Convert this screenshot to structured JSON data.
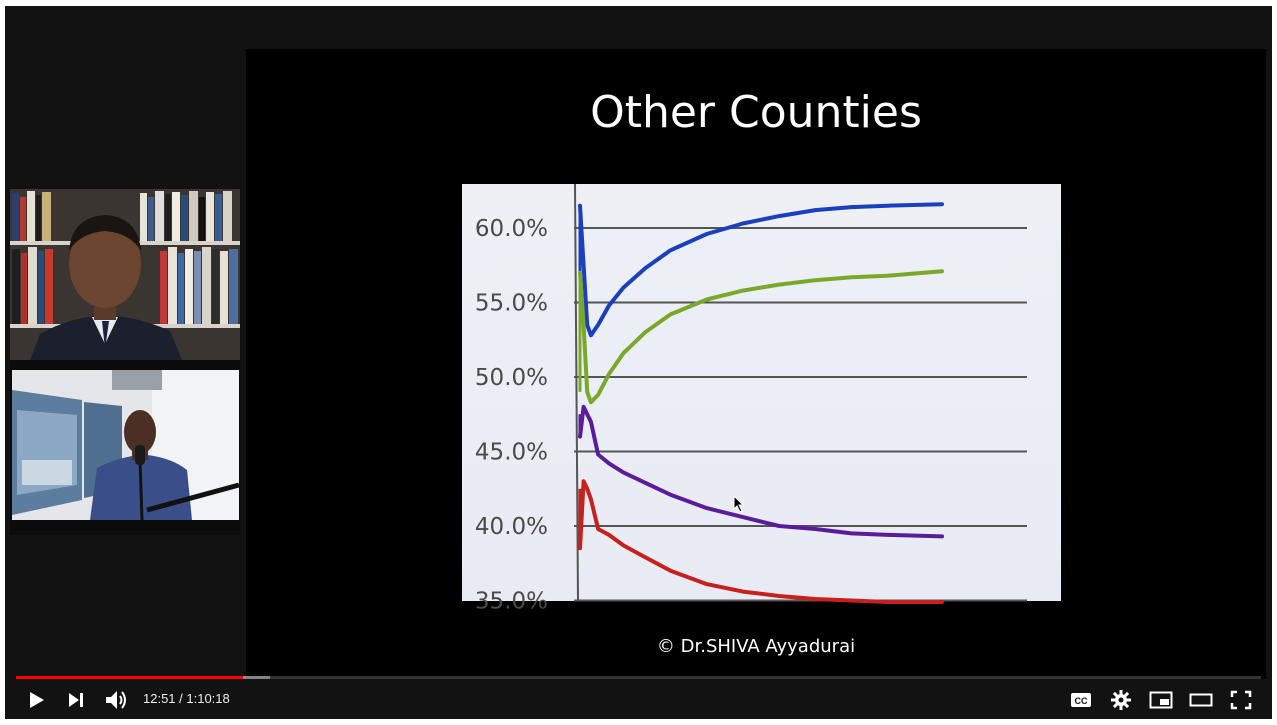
{
  "slide": {
    "title": "Other Counties",
    "credit": "© Dr.SHIVA Ayyadurai"
  },
  "chart_data": {
    "type": "line",
    "title": "",
    "xlabel": "",
    "ylabel": "",
    "y_tick_labels": [
      "60.0%",
      "55.0%",
      "50.0%",
      "45.0%",
      "40.0%",
      "35.0%"
    ],
    "ylim": [
      35.0,
      62.0
    ],
    "xlim": [
      0,
      100
    ],
    "grid": true,
    "series": [
      {
        "color": "#1a3fbf",
        "x": [
          0,
          1,
          2,
          3,
          5,
          8,
          12,
          18,
          25,
          35,
          45,
          55,
          65,
          75,
          85,
          100
        ],
        "y": [
          61.5,
          57.5,
          53.5,
          52.8,
          53.5,
          54.8,
          56.0,
          57.3,
          58.5,
          59.6,
          60.3,
          60.8,
          61.2,
          61.4,
          61.5,
          61.6
        ]
      },
      {
        "color": "#7aa82b",
        "x": [
          0,
          1,
          2,
          3,
          5,
          8,
          12,
          18,
          25,
          35,
          45,
          55,
          65,
          75,
          85,
          100
        ],
        "y": [
          57.0,
          53.5,
          49.0,
          48.3,
          48.8,
          50.2,
          51.6,
          53.0,
          54.2,
          55.2,
          55.8,
          56.2,
          56.5,
          56.7,
          56.8,
          57.1
        ]
      },
      {
        "color": "#5a1c9a",
        "x": [
          0,
          1,
          2,
          3,
          5,
          8,
          12,
          18,
          25,
          35,
          45,
          55,
          65,
          75,
          85,
          100
        ],
        "y": [
          46.0,
          48.0,
          47.5,
          47.0,
          44.8,
          44.2,
          43.6,
          42.9,
          42.1,
          41.2,
          40.6,
          40.0,
          39.8,
          39.5,
          39.4,
          39.3
        ]
      },
      {
        "color": "#c8201e",
        "x": [
          0,
          1,
          2,
          3,
          5,
          8,
          12,
          18,
          25,
          35,
          45,
          55,
          65,
          75,
          85,
          100
        ],
        "y": [
          38.5,
          43.0,
          42.5,
          41.8,
          39.8,
          39.4,
          38.7,
          37.9,
          37.0,
          36.1,
          35.6,
          35.3,
          35.1,
          35.0,
          34.9,
          34.9
        ]
      }
    ]
  },
  "player": {
    "time_display": "12:51 / 1:10:18",
    "progress_played": 0.182,
    "progress_buffered": 0.204,
    "icons": {
      "play": "play-icon",
      "next": "next-icon",
      "volume": "volume-icon",
      "cc": "cc-icon",
      "settings": "gear-icon",
      "miniplayer": "miniplayer-icon",
      "theater": "theater-icon",
      "fullscreen": "fullscreen-icon"
    },
    "cc_label": "CC",
    "accent_color": "#ff0000"
  }
}
